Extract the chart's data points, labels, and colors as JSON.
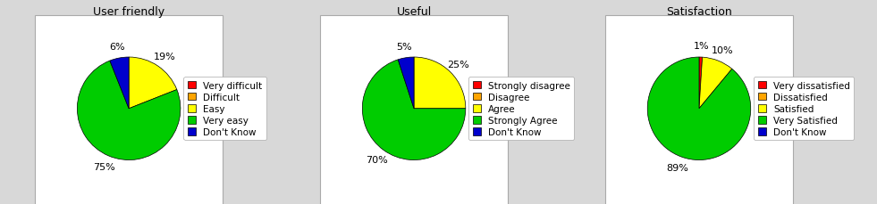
{
  "charts": [
    {
      "title": "User friendly",
      "labels": [
        "Very difficult",
        "Difficult",
        "Easy",
        "Very easy",
        "Don't Know"
      ],
      "values": [
        0,
        0,
        19,
        75,
        6
      ],
      "colors": [
        "#FF0000",
        "#FFA500",
        "#FFFF00",
        "#00CC00",
        "#0000CD"
      ],
      "pct_labels": [
        "",
        "",
        "19%",
        "75%",
        "6%"
      ]
    },
    {
      "title": "Useful",
      "labels": [
        "Strongly disagree",
        "Disagree",
        "Agree",
        "Strongly Agree",
        "Don't Know"
      ],
      "values": [
        0,
        0,
        25,
        70,
        5
      ],
      "colors": [
        "#FF0000",
        "#FFA500",
        "#FFFF00",
        "#00CC00",
        "#0000CD"
      ],
      "pct_labels": [
        "",
        "",
        "25%",
        "70%",
        "5%"
      ]
    },
    {
      "title": "Satisfaction",
      "labels": [
        "Very dissatisfied",
        "Dissatisfied",
        "Satisfied",
        "Very Satisfied",
        "Don't Know"
      ],
      "values": [
        1,
        0,
        10,
        89,
        0
      ],
      "colors": [
        "#FF0000",
        "#FFA500",
        "#FFFF00",
        "#00CC00",
        "#0000CD"
      ],
      "pct_labels": [
        "1%",
        "",
        "10%",
        "89%",
        ""
      ]
    }
  ],
  "fig_bg_color": "#d8d8d8",
  "box_bg_color": "#ffffff",
  "title_fontsize": 9,
  "label_fontsize": 8,
  "legend_fontsize": 7.5
}
